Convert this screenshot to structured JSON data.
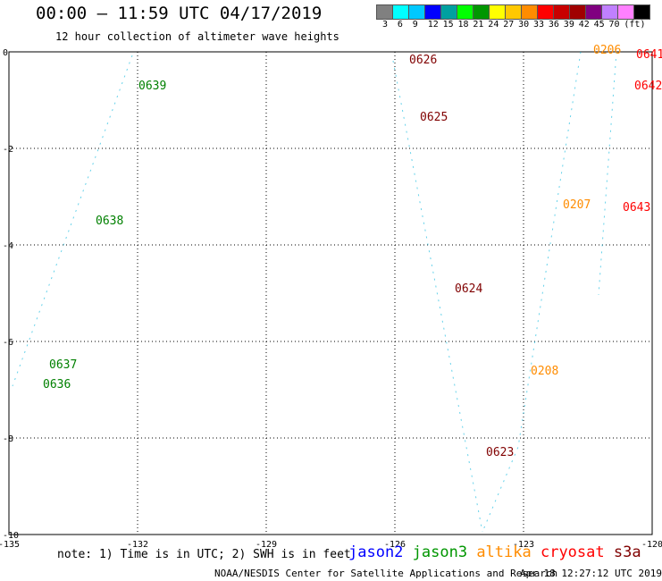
{
  "header": {
    "title": "00:00 – 11:59 UTC 04/17/2019",
    "subtitle": "12 hour collection of altimeter wave heights"
  },
  "color_scale": {
    "colors": [
      "#808080",
      "#00ffff",
      "#00c8ff",
      "#0000ff",
      "#00a0a0",
      "#00ff00",
      "#009600",
      "#ffff00",
      "#ffc800",
      "#ff8c00",
      "#ff0000",
      "#c80000",
      "#a00000",
      "#800080",
      "#c080ff",
      "#ff80ff",
      "#000000"
    ],
    "labels": [
      "3",
      "6",
      "9",
      "12",
      "15",
      "18",
      "21",
      "24",
      "27",
      "30",
      "33",
      "36",
      "39",
      "42",
      "45",
      "70",
      "(ft)"
    ]
  },
  "map": {
    "x_ticks": [
      "-135",
      "-132",
      "-129",
      "-126",
      "-123",
      "-120"
    ],
    "y_ticks": [
      "0",
      "-2",
      "-4",
      "-6",
      "-8",
      "-10"
    ],
    "passes": [
      {
        "label": "0639",
        "color": "#008000"
      },
      {
        "label": "0638",
        "color": "#008000"
      },
      {
        "label": "0637",
        "color": "#008000"
      },
      {
        "label": "0636",
        "color": "#008000"
      },
      {
        "label": "0626",
        "color": "#800000"
      },
      {
        "label": "0625",
        "color": "#800000"
      },
      {
        "label": "0624",
        "color": "#800000"
      },
      {
        "label": "0623",
        "color": "#800000"
      },
      {
        "label": "0206",
        "color": "#ff8c00"
      },
      {
        "label": "0207",
        "color": "#ff8c00"
      },
      {
        "label": "0208",
        "color": "#ff8c00"
      },
      {
        "label": "0641",
        "color": "#ff0000"
      },
      {
        "label": "0642",
        "color": "#ff0000"
      },
      {
        "label": "0643",
        "color": "#ff0000"
      }
    ]
  },
  "footer": {
    "note": "note: 1) Time is in UTC; 2) SWH is in feet",
    "satellites": [
      {
        "name": "jason2",
        "color": "#0000ff"
      },
      {
        "name": "jason3",
        "color": "#009600"
      },
      {
        "name": "altika",
        "color": "#ff8c00"
      },
      {
        "name": "cryosat",
        "color": "#ff0000"
      },
      {
        "name": "s3a",
        "color": "#800000"
      }
    ],
    "credit": "NOAA/NESDIS Center for Satellite Applications and Research",
    "timestamp": "Apr 18 12:27:12 UTC 2019"
  }
}
